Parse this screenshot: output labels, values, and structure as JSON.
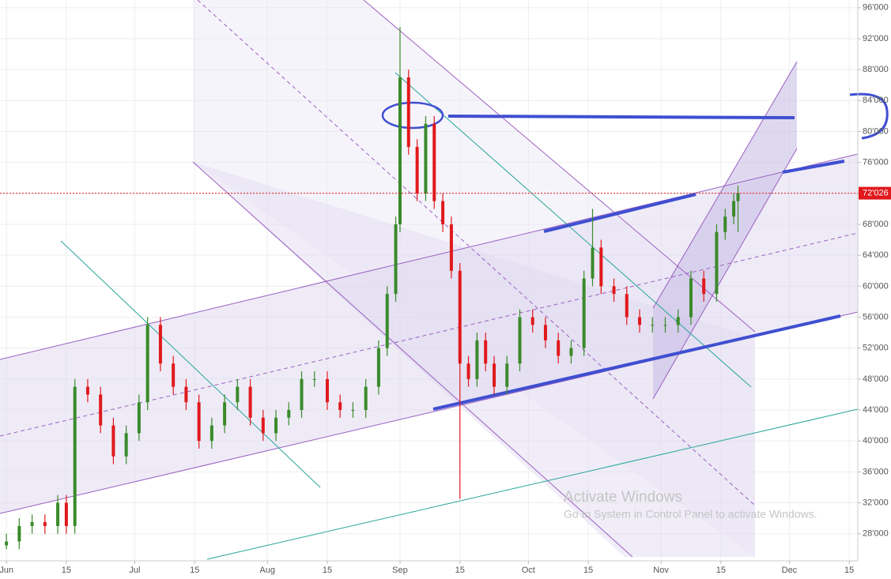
{
  "chart_data": {
    "type": "candlestick",
    "xlim": [
      -1.5,
      199
    ],
    "ylim": [
      24500,
      97000
    ],
    "xticks": [
      {
        "value": 0,
        "label": "Jun"
      },
      {
        "value": 14,
        "label": "15"
      },
      {
        "value": 30,
        "label": "Jul"
      },
      {
        "value": 44,
        "label": "15"
      },
      {
        "value": 61,
        "label": "Aug"
      },
      {
        "value": 75,
        "label": "15"
      },
      {
        "value": 92,
        "label": "Sep"
      },
      {
        "value": 106,
        "label": "15"
      },
      {
        "value": 122,
        "label": "Oct"
      },
      {
        "value": 136,
        "label": "15"
      },
      {
        "value": 153,
        "label": "Nov"
      },
      {
        "value": 167,
        "label": "15"
      },
      {
        "value": 183,
        "label": "Dec"
      },
      {
        "value": 197,
        "label": "15"
      }
    ],
    "yticks": [
      {
        "value": 96000,
        "label": "96'000"
      },
      {
        "value": 92000,
        "label": "92'000"
      },
      {
        "value": 88000,
        "label": "88'000"
      },
      {
        "value": 84000,
        "label": "84'000"
      },
      {
        "value": 80000,
        "label": "80'000"
      },
      {
        "value": 76000,
        "label": "76'000"
      },
      {
        "value": 72000,
        "label": "72'000"
      },
      {
        "value": 68000,
        "label": "68'000"
      },
      {
        "value": 64000,
        "label": "64'000"
      },
      {
        "value": 60000,
        "label": "60'000"
      },
      {
        "value": 56000,
        "label": "56'000"
      },
      {
        "value": 52000,
        "label": "52'000"
      },
      {
        "value": 48000,
        "label": "48'000"
      },
      {
        "value": 44000,
        "label": "44'000"
      },
      {
        "value": 40000,
        "label": "40'000"
      },
      {
        "value": 36000,
        "label": "36'000"
      },
      {
        "value": 32000,
        "label": "32'000"
      },
      {
        "value": 28000,
        "label": "28'000"
      }
    ],
    "grid": true,
    "up_color": "#3a8a2a",
    "down_color": "#e0191c",
    "last_price": {
      "value": 72026,
      "label": "72'026"
    },
    "watermark": [
      "Activate Windows",
      "Go to System in Control Panel to activate Windows."
    ],
    "x": [
      0,
      3,
      6,
      9,
      12,
      14,
      16,
      19,
      22,
      25,
      28,
      31,
      33,
      36,
      39,
      42,
      45,
      48,
      51,
      54,
      57,
      60,
      63,
      66,
      69,
      72,
      75,
      78,
      81,
      84,
      87,
      89,
      91,
      92,
      94,
      96,
      98,
      100,
      102,
      104,
      106,
      108,
      110,
      112,
      114,
      117,
      120,
      123,
      126,
      129,
      132,
      135,
      137,
      139,
      142,
      145,
      148,
      151,
      154,
      157,
      160,
      163,
      166,
      168,
      170,
      171
    ],
    "open": [
      26500,
      27000,
      29000,
      29500,
      29000,
      32000,
      29000,
      47000,
      46000,
      42000,
      38000,
      41000,
      45000,
      55000,
      50000,
      47000,
      45000,
      40000,
      42000,
      45000,
      47000,
      43000,
      41000,
      43000,
      44000,
      48000,
      48000,
      45000,
      44000,
      44000,
      47000,
      52000,
      59000,
      68000,
      87000,
      78000,
      72000,
      81000,
      71000,
      68000,
      62000,
      50000,
      48000,
      53000,
      50000,
      47000,
      50000,
      56000,
      55000,
      53000,
      51000,
      52000,
      61000,
      65000,
      60000,
      59000,
      56000,
      55000,
      55000,
      55000,
      56000,
      61000,
      59000,
      67000,
      69000,
      71000
    ],
    "high": [
      28000,
      30000,
      30500,
      30500,
      33000,
      33000,
      48000,
      48000,
      47000,
      43000,
      42000,
      46000,
      56000,
      56000,
      51000,
      48000,
      46000,
      43000,
      46000,
      48000,
      48000,
      44000,
      44000,
      45000,
      49000,
      49000,
      49000,
      46000,
      45000,
      48000,
      53000,
      60000,
      69000,
      93500,
      88000,
      79000,
      82000,
      82000,
      72000,
      69000,
      63000,
      51000,
      54000,
      54000,
      51000,
      51000,
      57000,
      57000,
      56000,
      54000,
      53000,
      62000,
      70000,
      66000,
      61000,
      60000,
      57000,
      56000,
      56000,
      57000,
      62000,
      62000,
      68000,
      70000,
      72000,
      73000
    ],
    "low": [
      26000,
      26000,
      28000,
      28000,
      28000,
      28000,
      28000,
      45000,
      41000,
      37000,
      37000,
      40000,
      44000,
      49000,
      46000,
      44000,
      39000,
      39000,
      41000,
      44000,
      42000,
      40000,
      40000,
      42000,
      43000,
      47000,
      44000,
      43000,
      43000,
      43000,
      46000,
      51000,
      58000,
      67000,
      77000,
      71000,
      71000,
      70000,
      67000,
      61000,
      32500,
      47000,
      47000,
      49000,
      46000,
      46000,
      49000,
      54000,
      52000,
      50000,
      50000,
      51000,
      60000,
      59000,
      58000,
      55000,
      54000,
      54000,
      54000,
      54000,
      55000,
      58000,
      58000,
      66000,
      68000,
      67000
    ],
    "close": [
      27000,
      29000,
      29500,
      29000,
      32000,
      29000,
      47000,
      46000,
      42000,
      38000,
      41000,
      45000,
      55000,
      50000,
      47000,
      45000,
      40000,
      42000,
      45000,
      47000,
      43000,
      41000,
      43000,
      44000,
      48000,
      48000,
      45000,
      44000,
      44000,
      47000,
      52000,
      59000,
      68000,
      87000,
      78000,
      72000,
      81000,
      71000,
      68000,
      62000,
      50000,
      48000,
      53000,
      50000,
      47000,
      50000,
      56000,
      55000,
      53000,
      51000,
      52000,
      61000,
      65000,
      60000,
      59000,
      56000,
      55000,
      55000,
      55000,
      56000,
      61000,
      59000,
      67000,
      69000,
      71000,
      72026
    ]
  }
}
